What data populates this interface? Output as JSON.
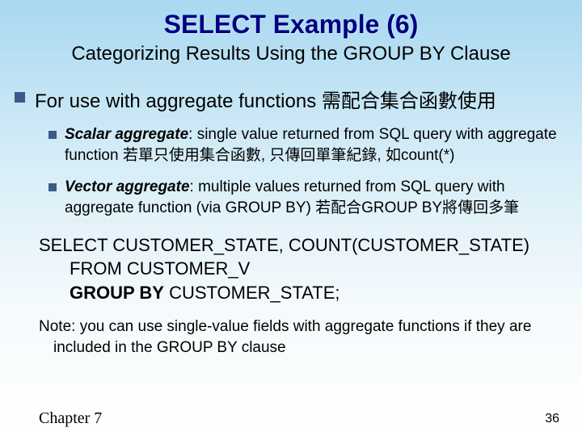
{
  "title": "SELECT Example (6)",
  "subtitle": "Categorizing Results Using the GROUP BY Clause",
  "main_point": "For use with aggregate functions 需配合集合函數使用",
  "sub1": {
    "term": "Scalar aggregate",
    "rest": ": single value returned from SQL query with aggregate function 若單只使用集合函數, 只傳回單筆紀錄, 如count(*)"
  },
  "sub2": {
    "term": "Vector aggregate",
    "rest": ": multiple values returned from SQL query with aggregate function (via GROUP BY) 若配合GROUP BY將傳回多筆"
  },
  "sql": {
    "line1": "SELECT CUSTOMER_STATE, COUNT(CUSTOMER_STATE)",
    "line2": "FROM CUSTOMER_V",
    "line3a": "GROUP BY",
    "line3b": " CUSTOMER_STATE;"
  },
  "note": {
    "line1": "Note: you can use single-value fields with aggregate functions if they are",
    "line2": "included in the GROUP BY clause"
  },
  "chapter": "Chapter 7",
  "pagenum": "36"
}
